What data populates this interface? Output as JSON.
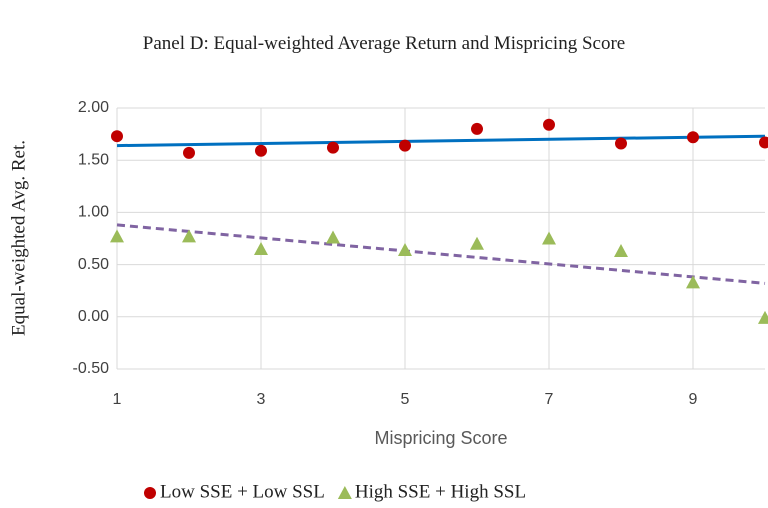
{
  "chart_data": {
    "type": "scatter",
    "title": "Panel D: Equal-weighted Average Return and Mispricing Score",
    "x_label": "Mispricing Score",
    "y_label": "Equal-weighted Avg. Ret.",
    "x": [
      1,
      2,
      3,
      4,
      5,
      6,
      7,
      8,
      9,
      10
    ],
    "series": [
      {
        "name": "Low SSE + Low SSL",
        "color": "#c00000",
        "marker": "circle",
        "values": [
          1.73,
          1.57,
          1.59,
          1.62,
          1.64,
          1.8,
          1.84,
          1.66,
          1.72,
          1.67
        ],
        "trendline": {
          "color": "#0070c0",
          "dash": false,
          "x": [
            1,
            10
          ],
          "values": [
            1.64,
            1.73
          ]
        }
      },
      {
        "name": "High SSE + High SSL",
        "color": "#9bbb59",
        "marker": "triangle",
        "values": [
          0.77,
          0.77,
          0.65,
          0.76,
          0.64,
          0.7,
          0.75,
          0.63,
          0.33,
          -0.01
        ],
        "trendline": {
          "color": "#8064a2",
          "dash": true,
          "x": [
            1,
            10
          ],
          "values": [
            0.88,
            0.32
          ]
        }
      }
    ],
    "xlim": [
      1,
      10
    ],
    "xticks": [
      1,
      3,
      5,
      7,
      9
    ],
    "ylim": [
      -0.5,
      2
    ],
    "yticks": [
      {
        "value": -0.5,
        "label": "-0.50"
      },
      {
        "value": 0,
        "label": "0.00"
      },
      {
        "value": 0.5,
        "label": "0.50"
      },
      {
        "value": 1,
        "label": "1.00"
      },
      {
        "value": 1.5,
        "label": "1.50"
      },
      {
        "value": 2,
        "label": "2.00"
      }
    ],
    "grid": true,
    "legend": "bottom"
  }
}
